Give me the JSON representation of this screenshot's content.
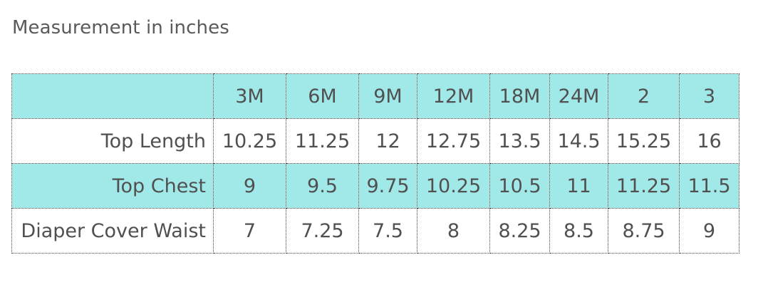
{
  "caption": "Measurement in inches",
  "table": {
    "header": {
      "corner": "",
      "sizes": [
        "3M",
        "6M",
        "9M",
        "12M",
        "18M",
        "24M",
        "2",
        "3"
      ]
    },
    "rows": [
      {
        "label": "Top Length",
        "values": [
          "10.25",
          "11.25",
          "12",
          "12.75",
          "13.5",
          "14.5",
          "15.25",
          "16"
        ]
      },
      {
        "label": "Top Chest",
        "values": [
          "9",
          "9.5",
          "9.75",
          "10.25",
          "10.5",
          "11",
          "11.25",
          "11.5"
        ]
      },
      {
        "label": "Diaper Cover Waist",
        "values": [
          "7",
          "7.25",
          "7.5",
          "8",
          "8.25",
          "8.5",
          "8.75",
          "9"
        ]
      }
    ]
  },
  "colors": {
    "shaded_row": "#a1e9e8",
    "plain_row": "#ffffff",
    "text": "#505050",
    "border": "#444444"
  }
}
